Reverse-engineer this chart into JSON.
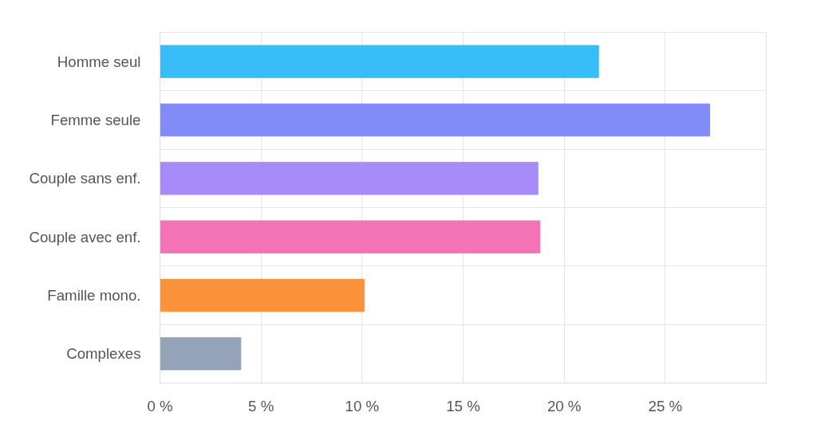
{
  "chart_data": {
    "type": "bar",
    "orientation": "horizontal",
    "categories": [
      "Homme seul",
      "Femme seule",
      "Couple sans enf.",
      "Couple avec enf.",
      "Famille mono.",
      "Complexes"
    ],
    "values": [
      21.7,
      27.2,
      18.7,
      18.8,
      10.1,
      4.0
    ],
    "colors": [
      "#38bdf8",
      "#818cf8",
      "#a78bfa",
      "#f472b6",
      "#fb923c",
      "#94a3b8"
    ],
    "xlim": [
      0,
      30
    ],
    "xticks": [
      {
        "value": 0,
        "label": "0 %"
      },
      {
        "value": 5,
        "label": "5 %"
      },
      {
        "value": 10,
        "label": "10 %"
      },
      {
        "value": 15,
        "label": "15 %"
      },
      {
        "value": 20,
        "label": "20 %"
      },
      {
        "value": 25,
        "label": "25 %"
      },
      {
        "value": 30,
        "label": null
      }
    ],
    "grid": true
  }
}
